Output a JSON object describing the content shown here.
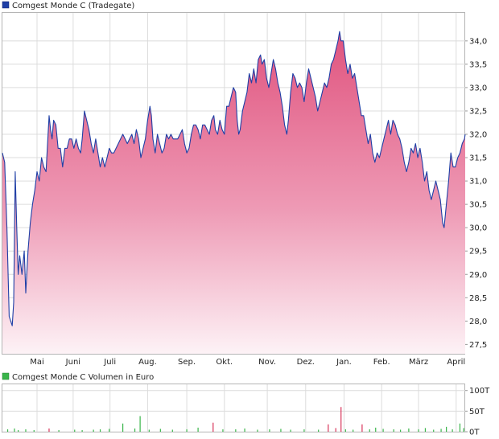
{
  "chart_data": [
    {
      "type": "area",
      "legend": "Comgest Monde C (Tradegate)",
      "color_line": "#1f3fa6",
      "color_fill_top": "#e0537e",
      "color_fill_bottom": "#fdf2f6",
      "ylim": [
        27.3,
        34.6
      ],
      "y_ticks": [
        "27,5",
        "28,0",
        "28,5",
        "29,0",
        "29,5",
        "30,0",
        "30,5",
        "31,0",
        "31,5",
        "32,0",
        "32,5",
        "33,0",
        "33,5",
        "34,0"
      ],
      "y_tick_values": [
        27.5,
        28.0,
        28.5,
        29.0,
        29.5,
        30.0,
        30.5,
        31.0,
        31.5,
        32.0,
        32.5,
        33.0,
        33.5,
        34.0
      ],
      "x_range": [
        0,
        12.3
      ],
      "x_ticks": [
        "Mai",
        "Juni",
        "Juli",
        "Aug.",
        "Sep.",
        "Okt.",
        "Nov.",
        "Dez.",
        "Jan.",
        "Feb.",
        "März",
        "April"
      ],
      "x_tick_positions": [
        0.92,
        1.88,
        2.86,
        3.86,
        4.9,
        5.9,
        7.04,
        8.06,
        9.08,
        10.08,
        11.06,
        12.06
      ],
      "grid": true,
      "points": [
        [
          0.0,
          31.6
        ],
        [
          0.06,
          31.4
        ],
        [
          0.12,
          30.0
        ],
        [
          0.18,
          28.1
        ],
        [
          0.22,
          28.0
        ],
        [
          0.26,
          27.9
        ],
        [
          0.3,
          28.4
        ],
        [
          0.34,
          31.2
        ],
        [
          0.38,
          30.0
        ],
        [
          0.42,
          29.0
        ],
        [
          0.46,
          29.4
        ],
        [
          0.52,
          29.0
        ],
        [
          0.58,
          29.5
        ],
        [
          0.62,
          28.6
        ],
        [
          0.68,
          29.5
        ],
        [
          0.74,
          30.1
        ],
        [
          0.8,
          30.5
        ],
        [
          0.86,
          30.8
        ],
        [
          0.92,
          31.2
        ],
        [
          0.98,
          31.0
        ],
        [
          1.04,
          31.5
        ],
        [
          1.1,
          31.3
        ],
        [
          1.16,
          31.2
        ],
        [
          1.2,
          31.8
        ],
        [
          1.24,
          32.4
        ],
        [
          1.28,
          32.1
        ],
        [
          1.32,
          31.9
        ],
        [
          1.36,
          32.3
        ],
        [
          1.42,
          32.2
        ],
        [
          1.48,
          31.7
        ],
        [
          1.54,
          31.7
        ],
        [
          1.6,
          31.3
        ],
        [
          1.66,
          31.7
        ],
        [
          1.72,
          31.7
        ],
        [
          1.78,
          31.9
        ],
        [
          1.84,
          31.9
        ],
        [
          1.9,
          31.7
        ],
        [
          1.96,
          31.9
        ],
        [
          2.02,
          31.7
        ],
        [
          2.08,
          31.6
        ],
        [
          2.12,
          31.9
        ],
        [
          2.18,
          32.5
        ],
        [
          2.24,
          32.3
        ],
        [
          2.3,
          32.1
        ],
        [
          2.36,
          31.8
        ],
        [
          2.42,
          31.6
        ],
        [
          2.48,
          31.9
        ],
        [
          2.54,
          31.6
        ],
        [
          2.6,
          31.3
        ],
        [
          2.66,
          31.5
        ],
        [
          2.72,
          31.3
        ],
        [
          2.78,
          31.5
        ],
        [
          2.84,
          31.7
        ],
        [
          2.9,
          31.6
        ],
        [
          2.96,
          31.6
        ],
        [
          3.02,
          31.7
        ],
        [
          3.08,
          31.8
        ],
        [
          3.14,
          31.9
        ],
        [
          3.2,
          32.0
        ],
        [
          3.26,
          31.9
        ],
        [
          3.32,
          31.8
        ],
        [
          3.38,
          31.9
        ],
        [
          3.44,
          32.0
        ],
        [
          3.5,
          31.8
        ],
        [
          3.56,
          32.1
        ],
        [
          3.62,
          31.9
        ],
        [
          3.68,
          31.5
        ],
        [
          3.74,
          31.7
        ],
        [
          3.8,
          31.9
        ],
        [
          3.86,
          32.3
        ],
        [
          3.92,
          32.6
        ],
        [
          3.96,
          32.4
        ],
        [
          4.0,
          31.9
        ],
        [
          4.06,
          31.6
        ],
        [
          4.12,
          32.0
        ],
        [
          4.18,
          31.8
        ],
        [
          4.24,
          31.6
        ],
        [
          4.3,
          31.7
        ],
        [
          4.36,
          32.0
        ],
        [
          4.42,
          31.9
        ],
        [
          4.48,
          32.0
        ],
        [
          4.54,
          31.9
        ],
        [
          4.6,
          31.9
        ],
        [
          4.66,
          31.9
        ],
        [
          4.72,
          32.0
        ],
        [
          4.78,
          32.1
        ],
        [
          4.84,
          31.8
        ],
        [
          4.9,
          31.6
        ],
        [
          4.96,
          31.7
        ],
        [
          5.02,
          32.0
        ],
        [
          5.08,
          32.2
        ],
        [
          5.14,
          32.2
        ],
        [
          5.2,
          32.1
        ],
        [
          5.26,
          31.9
        ],
        [
          5.32,
          32.2
        ],
        [
          5.38,
          32.2
        ],
        [
          5.44,
          32.1
        ],
        [
          5.5,
          32.0
        ],
        [
          5.56,
          32.3
        ],
        [
          5.62,
          32.4
        ],
        [
          5.66,
          32.1
        ],
        [
          5.72,
          32.0
        ],
        [
          5.78,
          32.3
        ],
        [
          5.84,
          32.1
        ],
        [
          5.9,
          32.0
        ],
        [
          5.96,
          32.6
        ],
        [
          6.02,
          32.6
        ],
        [
          6.08,
          32.8
        ],
        [
          6.14,
          33.0
        ],
        [
          6.2,
          32.9
        ],
        [
          6.24,
          32.3
        ],
        [
          6.28,
          32.0
        ],
        [
          6.32,
          32.1
        ],
        [
          6.38,
          32.5
        ],
        [
          6.44,
          32.7
        ],
        [
          6.5,
          32.9
        ],
        [
          6.56,
          33.3
        ],
        [
          6.62,
          33.1
        ],
        [
          6.68,
          33.4
        ],
        [
          6.74,
          33.1
        ],
        [
          6.8,
          33.6
        ],
        [
          6.86,
          33.7
        ],
        [
          6.9,
          33.5
        ],
        [
          6.96,
          33.6
        ],
        [
          7.02,
          33.2
        ],
        [
          7.08,
          33.0
        ],
        [
          7.14,
          33.3
        ],
        [
          7.2,
          33.6
        ],
        [
          7.26,
          33.4
        ],
        [
          7.32,
          33.1
        ],
        [
          7.38,
          32.9
        ],
        [
          7.44,
          32.6
        ],
        [
          7.5,
          32.2
        ],
        [
          7.56,
          32.0
        ],
        [
          7.6,
          32.3
        ],
        [
          7.66,
          32.9
        ],
        [
          7.72,
          33.3
        ],
        [
          7.78,
          33.2
        ],
        [
          7.84,
          33.0
        ],
        [
          7.9,
          33.1
        ],
        [
          7.96,
          33.0
        ],
        [
          8.02,
          32.7
        ],
        [
          8.08,
          33.1
        ],
        [
          8.14,
          33.4
        ],
        [
          8.2,
          33.2
        ],
        [
          8.26,
          33.0
        ],
        [
          8.32,
          32.8
        ],
        [
          8.38,
          32.5
        ],
        [
          8.44,
          32.7
        ],
        [
          8.5,
          32.9
        ],
        [
          8.56,
          33.1
        ],
        [
          8.62,
          33.0
        ],
        [
          8.68,
          33.2
        ],
        [
          8.74,
          33.5
        ],
        [
          8.8,
          33.6
        ],
        [
          8.86,
          33.8
        ],
        [
          8.92,
          34.0
        ],
        [
          8.96,
          34.2
        ],
        [
          9.0,
          34.0
        ],
        [
          9.06,
          34.0
        ],
        [
          9.12,
          33.6
        ],
        [
          9.18,
          33.3
        ],
        [
          9.24,
          33.5
        ],
        [
          9.3,
          33.2
        ],
        [
          9.36,
          33.3
        ],
        [
          9.42,
          33.0
        ],
        [
          9.48,
          32.7
        ],
        [
          9.54,
          32.4
        ],
        [
          9.6,
          32.4
        ],
        [
          9.66,
          32.1
        ],
        [
          9.72,
          31.8
        ],
        [
          9.78,
          32.0
        ],
        [
          9.84,
          31.6
        ],
        [
          9.9,
          31.4
        ],
        [
          9.96,
          31.6
        ],
        [
          10.02,
          31.5
        ],
        [
          10.08,
          31.7
        ],
        [
          10.14,
          31.9
        ],
        [
          10.2,
          32.1
        ],
        [
          10.26,
          32.3
        ],
        [
          10.32,
          32.0
        ],
        [
          10.38,
          32.3
        ],
        [
          10.44,
          32.2
        ],
        [
          10.5,
          32.0
        ],
        [
          10.56,
          31.9
        ],
        [
          10.62,
          31.7
        ],
        [
          10.68,
          31.4
        ],
        [
          10.74,
          31.2
        ],
        [
          10.8,
          31.4
        ],
        [
          10.86,
          31.7
        ],
        [
          10.92,
          31.6
        ],
        [
          10.98,
          31.8
        ],
        [
          11.04,
          31.5
        ],
        [
          11.1,
          31.7
        ],
        [
          11.16,
          31.4
        ],
        [
          11.22,
          31.0
        ],
        [
          11.28,
          31.2
        ],
        [
          11.34,
          30.8
        ],
        [
          11.4,
          30.6
        ],
        [
          11.46,
          30.8
        ],
        [
          11.52,
          31.0
        ],
        [
          11.58,
          30.8
        ],
        [
          11.64,
          30.6
        ],
        [
          11.7,
          30.1
        ],
        [
          11.74,
          30.0
        ],
        [
          11.8,
          30.5
        ],
        [
          11.86,
          31.0
        ],
        [
          11.92,
          31.6
        ],
        [
          11.98,
          31.3
        ],
        [
          12.04,
          31.3
        ],
        [
          12.1,
          31.5
        ],
        [
          12.16,
          31.6
        ],
        [
          12.22,
          31.8
        ],
        [
          12.28,
          31.9
        ],
        [
          12.3,
          32.0
        ]
      ]
    },
    {
      "type": "bar",
      "legend": "Comgest Monde C Volumen in Euro",
      "color_up": "#39b54a",
      "color_down": "#d8365c",
      "ylim": [
        0,
        115
      ],
      "y_ticks": [
        "100T",
        "50T",
        "0T"
      ],
      "y_tick_values": [
        100,
        50,
        0
      ],
      "x_range": [
        0,
        12.3
      ],
      "bars": [
        [
          0.14,
          6,
          "up"
        ],
        [
          0.32,
          8,
          "up"
        ],
        [
          0.42,
          4,
          "up"
        ],
        [
          0.62,
          6,
          "up"
        ],
        [
          0.84,
          4,
          "up"
        ],
        [
          1.24,
          8,
          "down"
        ],
        [
          1.5,
          4,
          "up"
        ],
        [
          1.92,
          5,
          "up"
        ],
        [
          2.12,
          4,
          "up"
        ],
        [
          2.42,
          5,
          "up"
        ],
        [
          2.6,
          6,
          "up"
        ],
        [
          2.84,
          7,
          "up"
        ],
        [
          3.2,
          20,
          "up"
        ],
        [
          3.52,
          8,
          "up"
        ],
        [
          3.66,
          38,
          "up"
        ],
        [
          3.9,
          5,
          "up"
        ],
        [
          4.2,
          7,
          "up"
        ],
        [
          4.52,
          5,
          "up"
        ],
        [
          4.9,
          6,
          "up"
        ],
        [
          5.2,
          10,
          "up"
        ],
        [
          5.6,
          22,
          "down"
        ],
        [
          5.86,
          6,
          "up"
        ],
        [
          6.2,
          6,
          "up"
        ],
        [
          6.44,
          8,
          "up"
        ],
        [
          6.78,
          5,
          "up"
        ],
        [
          7.1,
          6,
          "up"
        ],
        [
          7.4,
          7,
          "up"
        ],
        [
          7.66,
          5,
          "up"
        ],
        [
          8.02,
          6,
          "up"
        ],
        [
          8.4,
          5,
          "up"
        ],
        [
          8.66,
          18,
          "down"
        ],
        [
          8.86,
          9,
          "down"
        ],
        [
          9.0,
          60,
          "down"
        ],
        [
          9.12,
          6,
          "up"
        ],
        [
          9.32,
          5,
          "up"
        ],
        [
          9.56,
          18,
          "down"
        ],
        [
          9.76,
          6,
          "up"
        ],
        [
          9.92,
          10,
          "up"
        ],
        [
          10.12,
          7,
          "up"
        ],
        [
          10.4,
          6,
          "up"
        ],
        [
          10.58,
          5,
          "up"
        ],
        [
          10.8,
          8,
          "up"
        ],
        [
          11.06,
          6,
          "up"
        ],
        [
          11.24,
          9,
          "up"
        ],
        [
          11.46,
          5,
          "up"
        ],
        [
          11.66,
          7,
          "up"
        ],
        [
          11.8,
          12,
          "up"
        ],
        [
          11.96,
          6,
          "up"
        ],
        [
          12.16,
          20,
          "up"
        ],
        [
          12.26,
          9,
          "up"
        ]
      ]
    }
  ]
}
